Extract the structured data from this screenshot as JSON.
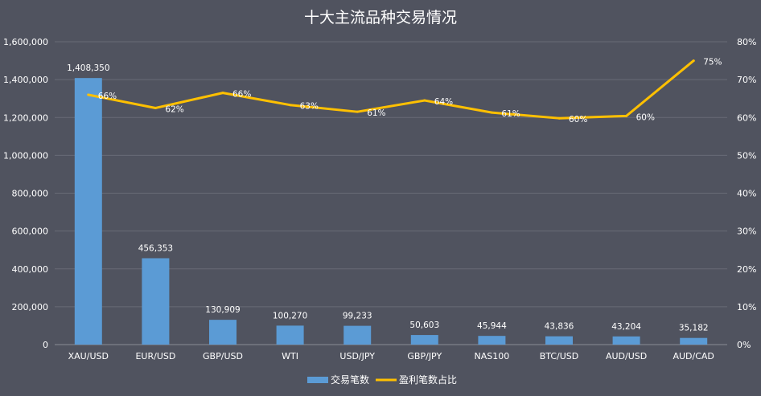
{
  "chart_data": {
    "type": "bar+line",
    "title": "十大主流品种交易情况",
    "categories": [
      "XAU/USD",
      "EUR/USD",
      "GBP/USD",
      "WTI",
      "USD/JPY",
      "GBP/JPY",
      "NAS100",
      "BTC/USD",
      "AUD/USD",
      "AUD/CAD"
    ],
    "series": [
      {
        "name": "交易笔数",
        "type": "bar",
        "axis": "left",
        "color": "#5b9bd5",
        "values": [
          1408350,
          456353,
          130909,
          100270,
          99233,
          50603,
          45944,
          43836,
          43204,
          35182
        ],
        "labels": [
          "1,408,350",
          "456,353",
          "130,909",
          "100,270",
          "99,233",
          "50,603",
          "45,944",
          "43,836",
          "43,204",
          "35,182"
        ]
      },
      {
        "name": "盈利笔数占比",
        "type": "line",
        "axis": "right",
        "color": "#ffc000",
        "values": [
          0.66,
          0.625,
          0.665,
          0.633,
          0.615,
          0.645,
          0.613,
          0.598,
          0.604,
          0.75
        ],
        "labels": [
          "66%",
          "62%",
          "66%",
          "63%",
          "61%",
          "64%",
          "61%",
          "60%",
          "60%",
          "75%"
        ]
      }
    ],
    "y_left": {
      "min": 0,
      "max": 1600000,
      "ticks": [
        "0",
        "200,000",
        "400,000",
        "600,000",
        "800,000",
        "1,000,000",
        "1,200,000",
        "1,400,000",
        "1,600,000"
      ]
    },
    "y_right": {
      "min": 0,
      "max": 0.8,
      "ticks": [
        "0%",
        "10%",
        "20%",
        "30%",
        "40%",
        "50%",
        "60%",
        "70%",
        "80%"
      ]
    },
    "grid": true,
    "legend": "bottom"
  }
}
